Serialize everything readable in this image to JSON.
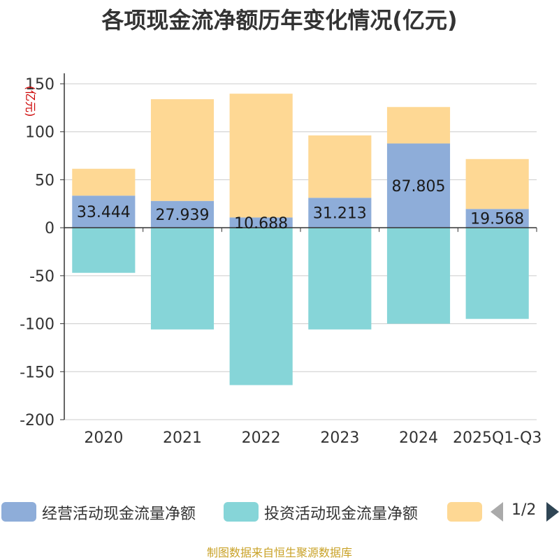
{
  "chart_data": {
    "type": "bar",
    "stacked": true,
    "title": "各项现金流净额历年变化情况(亿元)",
    "ylabel": "(亿元)",
    "ylim": [
      -200,
      150
    ],
    "yticks": [
      150,
      100,
      50,
      0,
      -50,
      -100,
      -150,
      -200
    ],
    "categories": [
      "2020",
      "2021",
      "2022",
      "2023",
      "2024",
      "2025Q1-Q3"
    ],
    "series": [
      {
        "name": "经营活动现金流量净额",
        "color": "#8eadd9",
        "values": [
          33.444,
          27.939,
          10.688,
          31.213,
          87.805,
          19.568
        ],
        "labels": [
          "33.444",
          "27.939",
          "10.688",
          "31.213",
          "87.805",
          "19.568"
        ]
      },
      {
        "name": "投资活动现金流量净额",
        "color": "#86d5d8",
        "values": [
          -47,
          -106,
          -164,
          -106,
          -100,
          -95
        ]
      },
      {
        "name": "",
        "color": "#fed894",
        "values": [
          28,
          106,
          129,
          65,
          38,
          52
        ]
      }
    ],
    "grid": true,
    "legend_position": "bottom"
  },
  "legend": {
    "items": [
      {
        "label": "经营活动现金流量净额",
        "color": "#8eadd9"
      },
      {
        "label": "投资活动现金流量净额",
        "color": "#86d5d8"
      },
      {
        "label": "",
        "color": "#fed894"
      }
    ],
    "page": "1/2"
  },
  "source": "制图数据来自恒生聚源数据库",
  "colors": {
    "axis": "#333333",
    "grid": "#cccccc",
    "text": "#333333",
    "ylabel": "#cc0000"
  }
}
